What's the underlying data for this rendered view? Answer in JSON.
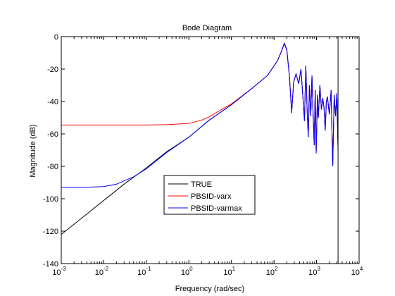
{
  "chart_data": {
    "type": "line",
    "title": "Bode Diagram",
    "xlabel": "Frequency  (rad/sec)",
    "ylabel": "Magnitude (dB)",
    "xscale": "log",
    "xlim": [
      0.001,
      10000
    ],
    "ylim": [
      -140,
      0
    ],
    "x_ticks": [
      {
        "value": 0.001,
        "base": "10",
        "exp": "-3"
      },
      {
        "value": 0.01,
        "base": "10",
        "exp": "-2"
      },
      {
        "value": 0.1,
        "base": "10",
        "exp": "-1"
      },
      {
        "value": 1,
        "base": "10",
        "exp": "0"
      },
      {
        "value": 10,
        "base": "10",
        "exp": "1"
      },
      {
        "value": 100,
        "base": "10",
        "exp": "2"
      },
      {
        "value": 1000,
        "base": "10",
        "exp": "3"
      },
      {
        "value": 10000,
        "base": "10",
        "exp": "4"
      }
    ],
    "y_ticks": [
      0,
      -20,
      -40,
      -60,
      -80,
      -100,
      -120,
      -140
    ],
    "grid": false,
    "legend_position": "lower-center",
    "vertical_line": {
      "x": 3200,
      "color": "#000000"
    },
    "series": [
      {
        "name": "TRUE",
        "color": "#000000",
        "x": [
          0.001,
          0.003,
          0.01,
          0.03,
          0.1,
          0.3,
          1,
          3,
          10,
          30,
          70,
          120,
          150,
          175,
          200,
          230,
          260,
          290,
          330,
          380,
          430,
          480,
          520,
          560,
          600,
          640,
          680,
          730,
          780,
          830,
          880,
          930,
          980,
          1050,
          1100,
          1200,
          1300,
          1400,
          1500,
          1600,
          1700,
          1800,
          2000,
          2200,
          2400,
          2600,
          2800,
          3000,
          3200
        ],
        "y": [
          -122,
          -112,
          -101,
          -91,
          -81,
          -71,
          -62,
          -51.5,
          -42,
          -32,
          -24,
          -15,
          -9,
          -4,
          -8,
          -24,
          -47,
          -28,
          -23,
          -29,
          -20,
          -38,
          -52,
          -18,
          -45,
          -62,
          -30,
          -49,
          -24,
          -48,
          -67,
          -33,
          -72,
          -36,
          -50,
          -30,
          -45,
          -38,
          -44,
          -58,
          -40,
          -37,
          -48,
          -33,
          -80,
          -36,
          -49,
          -35,
          -70
        ]
      },
      {
        "name": "PBSID-varx",
        "color": "#ff0000",
        "x": [
          0.001,
          0.01,
          0.1,
          0.3,
          1,
          2,
          3,
          5,
          10,
          30,
          70,
          120,
          150,
          175,
          200,
          230,
          260,
          290,
          330,
          380,
          430,
          480,
          520,
          560,
          600,
          640,
          680,
          730,
          780,
          830,
          880,
          930,
          980,
          1050,
          1100,
          1200,
          1300,
          1400,
          1500,
          1600,
          1700,
          1800,
          2000,
          2200,
          2400,
          2600,
          2800,
          3000,
          3200
        ],
        "y": [
          -54.5,
          -54.5,
          -54.5,
          -54.3,
          -53.5,
          -51.5,
          -49.5,
          -46,
          -41.5,
          -32,
          -24,
          -15,
          -9,
          -4.5,
          -8.5,
          -24,
          -46,
          -28,
          -23,
          -29,
          -20.5,
          -38,
          -52,
          -18.5,
          -45,
          -61,
          -30,
          -49,
          -24.5,
          -48,
          -66,
          -33,
          -71,
          -36,
          -50,
          -30,
          -45,
          -38,
          -44,
          -57,
          -40,
          -37,
          -48,
          -33,
          -79,
          -36,
          -49,
          -35,
          -62
        ]
      },
      {
        "name": "PBSID-varmax",
        "color": "#0000ff",
        "x": [
          0.001,
          0.003,
          0.01,
          0.02,
          0.03,
          0.05,
          0.1,
          0.3,
          1,
          3,
          10,
          30,
          70,
          120,
          150,
          175,
          200,
          230,
          260,
          290,
          330,
          380,
          430,
          480,
          520,
          560,
          600,
          640,
          680,
          730,
          780,
          830,
          880,
          930,
          980,
          1050,
          1100,
          1200,
          1300,
          1400,
          1500,
          1600,
          1700,
          1800,
          2000,
          2200,
          2400,
          2600,
          2800,
          3000,
          3200
        ],
        "y": [
          -93,
          -93,
          -92.5,
          -91,
          -89,
          -86.5,
          -81.5,
          -71.5,
          -62,
          -51.5,
          -42,
          -32,
          -24,
          -15,
          -9,
          -4,
          -8,
          -24,
          -47,
          -28,
          -23,
          -29,
          -20,
          -38,
          -52,
          -18,
          -45,
          -62,
          -30,
          -49,
          -24,
          -48,
          -67,
          -33,
          -72,
          -36,
          -50,
          -30,
          -45,
          -38,
          -44,
          -58,
          -40,
          -37,
          -48,
          -33,
          -80,
          -36,
          -49,
          -35,
          -70
        ]
      }
    ]
  }
}
